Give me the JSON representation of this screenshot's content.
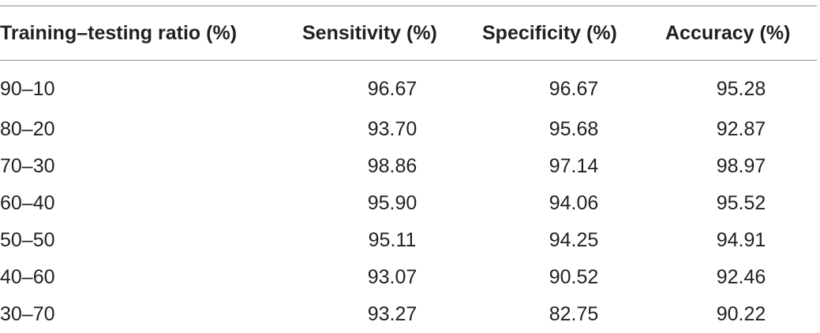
{
  "table": {
    "headers": [
      "Training–testing ratio (%)",
      "Sensitivity (%)",
      "Specificity (%)",
      "Accuracy (%)"
    ],
    "rows": [
      [
        "90–10",
        "96.67",
        "96.67",
        "95.28"
      ],
      [
        "80–20",
        "93.70",
        "95.68",
        "92.87"
      ],
      [
        "70–30",
        "98.86",
        "97.14",
        "98.97"
      ],
      [
        "60–40",
        "95.90",
        "94.06",
        "95.52"
      ],
      [
        "50–50",
        "95.11",
        "94.25",
        "94.91"
      ],
      [
        "40–60",
        "93.07",
        "90.52",
        "92.46"
      ],
      [
        "30–70",
        "93.27",
        "82.75",
        "90.22"
      ]
    ]
  }
}
